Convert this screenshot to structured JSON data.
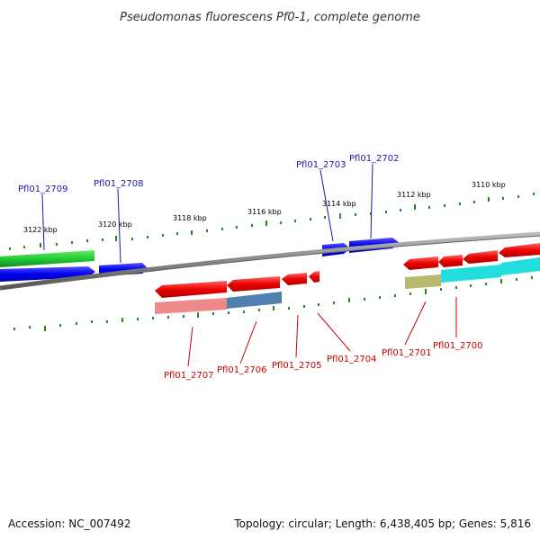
{
  "title": "Pseudomonas fluorescens Pf0-1, complete genome",
  "footer": {
    "accession": "Accession: NC_007492",
    "topology": "Topology: circular; Length: 6,438,405 bp; Genes: 5,816"
  },
  "ticks": [
    "3122 kbp",
    "3120 kbp",
    "3118 kbp",
    "3116 kbp",
    "3114 kbp",
    "3112 kbp",
    "3110 kbp"
  ],
  "genes_top": [
    "Pfl01_2709",
    "Pfl01_2708",
    "Pfl01_2703",
    "Pfl01_2702"
  ],
  "genes_bottom": [
    "Pfl01_2707",
    "Pfl01_2706",
    "Pfl01_2705",
    "Pfl01_2704",
    "Pfl01_2701",
    "Pfl01_2700"
  ],
  "colors": {
    "forward_genes": "#0000ee",
    "reverse_genes": "#ee0000",
    "rna_gene": "#22cc33",
    "backbone": "#808080",
    "ticks": "#228822",
    "top_labels": "#1a1aa6",
    "bottom_labels": "#c80000"
  }
}
